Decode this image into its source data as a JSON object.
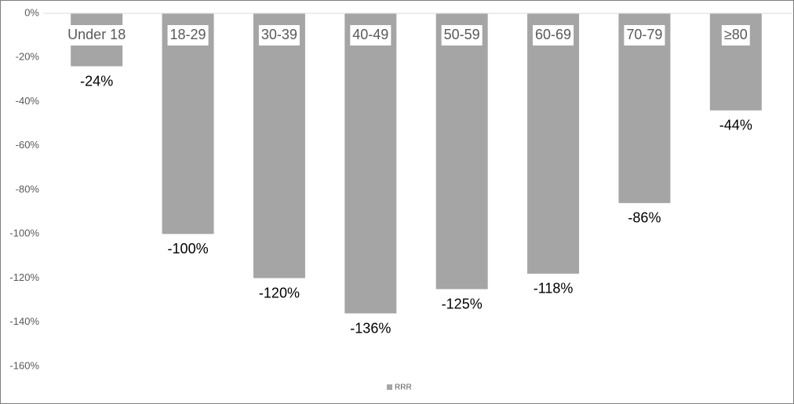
{
  "chart_data": {
    "type": "bar",
    "categories": [
      "Under 18",
      "18-29",
      "30-39",
      "40-49",
      "50-59",
      "60-69",
      "70-79",
      "≥80"
    ],
    "series": [
      {
        "name": "RRR",
        "color": "#a5a5a5",
        "values": [
          -24,
          -100,
          -120,
          -136,
          -125,
          -118,
          -86,
          -44
        ],
        "value_labels": [
          "-24%",
          "-100%",
          "-120%",
          "-136%",
          "-125%",
          "-118%",
          "-86%",
          "-44%"
        ]
      }
    ],
    "ylim": [
      -160,
      0
    ],
    "yticks": [
      {
        "value": 0,
        "label": "0%"
      },
      {
        "value": -20,
        "label": "-20%"
      },
      {
        "value": -40,
        "label": "-40%"
      },
      {
        "value": -60,
        "label": "-60%"
      },
      {
        "value": -80,
        "label": "-80%"
      },
      {
        "value": -100,
        "label": "-100%"
      },
      {
        "value": -120,
        "label": "-120%"
      },
      {
        "value": -140,
        "label": "-140%"
      },
      {
        "value": -160,
        "label": "-160%"
      }
    ],
    "grid": false,
    "legend": "bottom"
  }
}
